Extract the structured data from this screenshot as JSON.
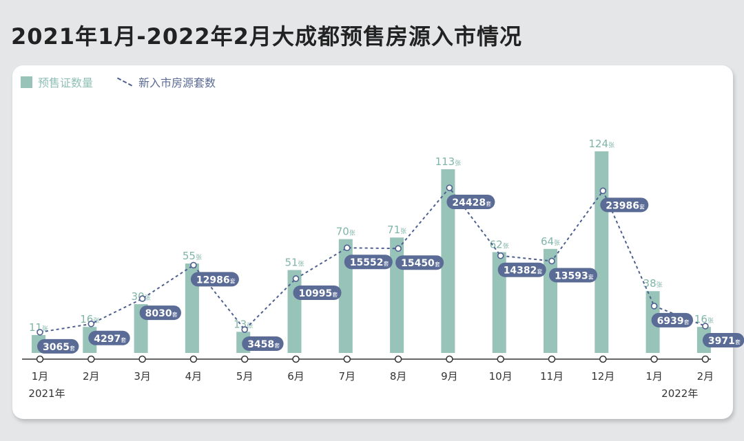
{
  "title": "2021年1月-2022年2月大成都预售房源入市情况",
  "colors": {
    "bar": "#97c3b9",
    "bar_label": "#7fb5a8",
    "line": "#4f6090",
    "pill": "#5a6b96",
    "axis": "#333333"
  },
  "chart_data": {
    "type": "bar",
    "title": "2021年1月-2022年2月大成都预售房源入市情况",
    "categories": [
      "1月",
      "2月",
      "3月",
      "4月",
      "5月",
      "6月",
      "7月",
      "8月",
      "9月",
      "10月",
      "11月",
      "12月",
      "1月",
      "2月"
    ],
    "year_labels": [
      "2021年",
      "2022年"
    ],
    "series": [
      {
        "name": "预售证数量",
        "type": "bar",
        "unit": "张",
        "values": [
          11,
          16,
          30,
          55,
          13,
          51,
          70,
          71,
          113,
          62,
          64,
          124,
          38,
          16
        ]
      },
      {
        "name": "新入市房源套数",
        "type": "line",
        "unit": "套",
        "values": [
          3065,
          4297,
          8030,
          12986,
          3458,
          10995,
          15552,
          15450,
          24428,
          14382,
          13593,
          23986,
          6939,
          3971
        ]
      }
    ],
    "bar_ylim": [
      0,
      124
    ],
    "line_ylim": [
      0,
      24428
    ],
    "legend": "top-left",
    "grid": false
  }
}
